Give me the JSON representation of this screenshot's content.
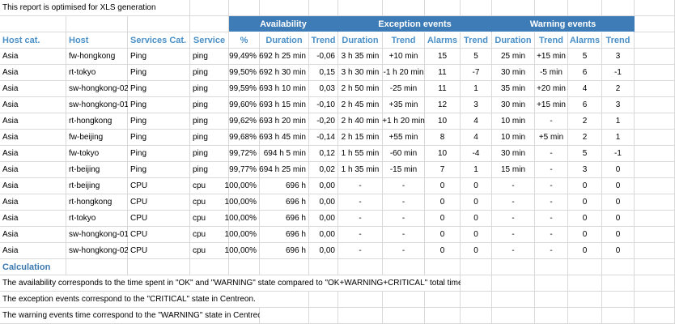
{
  "note": "This report is optimised for XLS generation",
  "table": {
    "groups": [
      "Availability",
      "Exception events",
      "Warning events"
    ],
    "columns": [
      "Host cat.",
      "Host",
      "Services Cat.",
      "Service",
      "%",
      "Duration",
      "Trend",
      "Duration",
      "Trend",
      "Alarms",
      "Trend",
      "Duration",
      "Trend",
      "Alarms",
      "Trend"
    ],
    "rows": [
      [
        "Asia",
        "fw-hongkong",
        "Ping",
        "ping",
        "99,49%",
        "692 h 25 min",
        "-0,06",
        "3 h 35 min",
        "+10 min",
        "15",
        "5",
        "25 min",
        "+15 min",
        "5",
        "3"
      ],
      [
        "Asia",
        "rt-tokyo",
        "Ping",
        "ping",
        "99,50%",
        "692 h 30 min",
        "0,15",
        "3 h 30 min",
        "-1 h 20 min",
        "11",
        "-7",
        "30 min",
        "-5 min",
        "6",
        "-1"
      ],
      [
        "Asia",
        "sw-hongkong-02",
        "Ping",
        "ping",
        "99,59%",
        "693 h 10 min",
        "0,03",
        "2 h 50 min",
        "-25 min",
        "11",
        "1",
        "35 min",
        "+20 min",
        "4",
        "2"
      ],
      [
        "Asia",
        "sw-hongkong-01",
        "Ping",
        "ping",
        "99,60%",
        "693 h 15 min",
        "-0,10",
        "2 h 45 min",
        "+35 min",
        "12",
        "3",
        "30 min",
        "+15 min",
        "6",
        "3"
      ],
      [
        "Asia",
        "rt-hongkong",
        "Ping",
        "ping",
        "99,62%",
        "693 h 20 min",
        "-0,20",
        "2 h 40 min",
        "+1 h 20 min",
        "10",
        "4",
        "10 min",
        "-",
        "2",
        "1"
      ],
      [
        "Asia",
        "fw-beijing",
        "Ping",
        "ping",
        "99,68%",
        "693 h 45 min",
        "-0,14",
        "2 h 15 min",
        "+55 min",
        "8",
        "4",
        "10 min",
        "+5 min",
        "2",
        "1"
      ],
      [
        "Asia",
        "fw-tokyo",
        "Ping",
        "ping",
        "99,72%",
        "694 h 5 min",
        "0,12",
        "1 h 55 min",
        "-60 min",
        "10",
        "-4",
        "30 min",
        "-",
        "5",
        "-1"
      ],
      [
        "Asia",
        "rt-beijing",
        "Ping",
        "ping",
        "99,77%",
        "694 h 25 min",
        "0,02",
        "1 h 35 min",
        "-15 min",
        "7",
        "1",
        "15 min",
        "-",
        "3",
        "0"
      ],
      [
        "Asia",
        "rt-beijing",
        "CPU",
        "cpu",
        "100,00%",
        "696 h",
        "0,00",
        "-",
        "-",
        "0",
        "0",
        "-",
        "-",
        "0",
        "0"
      ],
      [
        "Asia",
        "rt-hongkong",
        "CPU",
        "cpu",
        "100,00%",
        "696 h",
        "0,00",
        "-",
        "-",
        "0",
        "0",
        "-",
        "-",
        "0",
        "0"
      ],
      [
        "Asia",
        "rt-tokyo",
        "CPU",
        "cpu",
        "100,00%",
        "696 h",
        "0,00",
        "-",
        "-",
        "0",
        "0",
        "-",
        "-",
        "0",
        "0"
      ],
      [
        "Asia",
        "sw-hongkong-01",
        "CPU",
        "cpu",
        "100,00%",
        "696 h",
        "0,00",
        "-",
        "-",
        "0",
        "0",
        "-",
        "-",
        "0",
        "0"
      ],
      [
        "Asia",
        "sw-hongkong-02",
        "CPU",
        "cpu",
        "100,00%",
        "696 h",
        "0,00",
        "-",
        "-",
        "0",
        "0",
        "-",
        "-",
        "0",
        "0"
      ]
    ]
  },
  "calculation": {
    "title": "Calculation",
    "lines": [
      "The availability corresponds to the time spent in \"OK\" and \"WARNING\" state compared to \"OK+WARNING+CRITICAL\" total time.",
      "The exception events correspond to the \"CRITICAL\" state in Centreon.",
      "The warning events time correspond to the \"WARNING\" state in Centreon."
    ]
  }
}
